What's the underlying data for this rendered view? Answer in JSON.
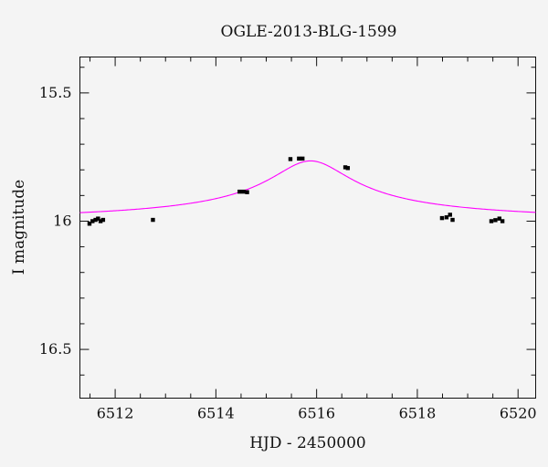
{
  "chart_data": {
    "type": "scatter",
    "title": "OGLE-2013-BLG-1599",
    "xlabel": "HJD - 2450000",
    "ylabel": "I magnitude",
    "xlim": [
      6511.3,
      6520.35
    ],
    "ylim": [
      15.36,
      16.69
    ],
    "y_inverted": true,
    "x_ticks": [
      6512,
      6514,
      6516,
      6518,
      6520
    ],
    "x_tick_labels": [
      "6512",
      "6514",
      "6516",
      "6518",
      "6520"
    ],
    "y_ticks": [
      15.5,
      16,
      16.5
    ],
    "y_tick_labels": [
      "15.5",
      "16",
      "16.5"
    ],
    "grid": false,
    "colors": {
      "model": "#ff00ff",
      "points": "#000000",
      "background": "#f4f4f4"
    },
    "model": {
      "baseline": 16.01,
      "amplitude": 0.245,
      "t0": 6515.88,
      "tE": 0.82
    },
    "series": [
      {
        "points": [
          [
            6511.49,
            16.01
          ],
          [
            6511.55,
            16.0
          ],
          [
            6511.61,
            15.995
          ],
          [
            6511.66,
            15.99
          ],
          [
            6511.71,
            16.0
          ],
          [
            6511.76,
            15.995
          ],
          [
            6512.75,
            15.995
          ],
          [
            6514.47,
            15.885
          ],
          [
            6514.55,
            15.885
          ],
          [
            6514.62,
            15.887
          ],
          [
            6515.48,
            15.758
          ],
          [
            6515.65,
            15.756
          ],
          [
            6515.72,
            15.756
          ],
          [
            6516.57,
            15.79
          ],
          [
            6516.62,
            15.793
          ],
          [
            6518.49,
            15.988
          ],
          [
            6518.58,
            15.985
          ],
          [
            6518.65,
            15.975
          ],
          [
            6518.7,
            15.995
          ],
          [
            6519.47,
            16.0
          ],
          [
            6519.55,
            15.996
          ],
          [
            6519.63,
            15.99
          ],
          [
            6519.69,
            16.0
          ]
        ]
      }
    ]
  }
}
